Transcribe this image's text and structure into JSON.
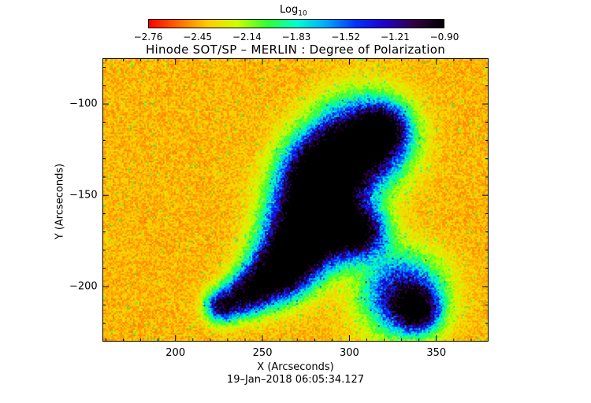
{
  "colorbar": {
    "title_main": "Log",
    "title_sub": "10",
    "colors": [
      "#ff0000",
      "#ff6a00",
      "#ffcc00",
      "#ccff00",
      "#33ff33",
      "#00ffcc",
      "#00aaff",
      "#0033ff",
      "#2200cc",
      "#330044",
      "#000000"
    ],
    "ticks": [
      "−2.76",
      "−2.45",
      "−2.14",
      "−1.83",
      "−1.52",
      "−1.21",
      "−0.90"
    ]
  },
  "title": "Hinode SOT/SP – MERLIN : Degree of Polarization",
  "x_axis": {
    "label": "X (Arcseconds)",
    "ticks": [
      "200",
      "250",
      "300",
      "350"
    ],
    "range": [
      158,
      380
    ]
  },
  "y_axis": {
    "label": "Y (Arcseconds)",
    "ticks": [
      "−100",
      "−150",
      "−200"
    ],
    "range": [
      -230,
      -75
    ]
  },
  "timestamp": "19–Jan–2018 06:05:34.127",
  "chart_data": {
    "type": "heatmap",
    "title": "Hinode SOT/SP – MERLIN : Degree of Polarization",
    "xlabel": "X (Arcseconds)",
    "ylabel": "Y (Arcseconds)",
    "xlim": [
      158,
      380
    ],
    "ylim": [
      -230,
      -75
    ],
    "colorbar_label": "Log10",
    "colorbar_range": [
      -2.76,
      -0.9
    ],
    "colorbar_ticks": [
      -2.76,
      -2.45,
      -2.14,
      -1.83,
      -1.52,
      -1.21,
      -0.9
    ],
    "colormap": "rainbow (red low → black high)",
    "grid": false
  }
}
